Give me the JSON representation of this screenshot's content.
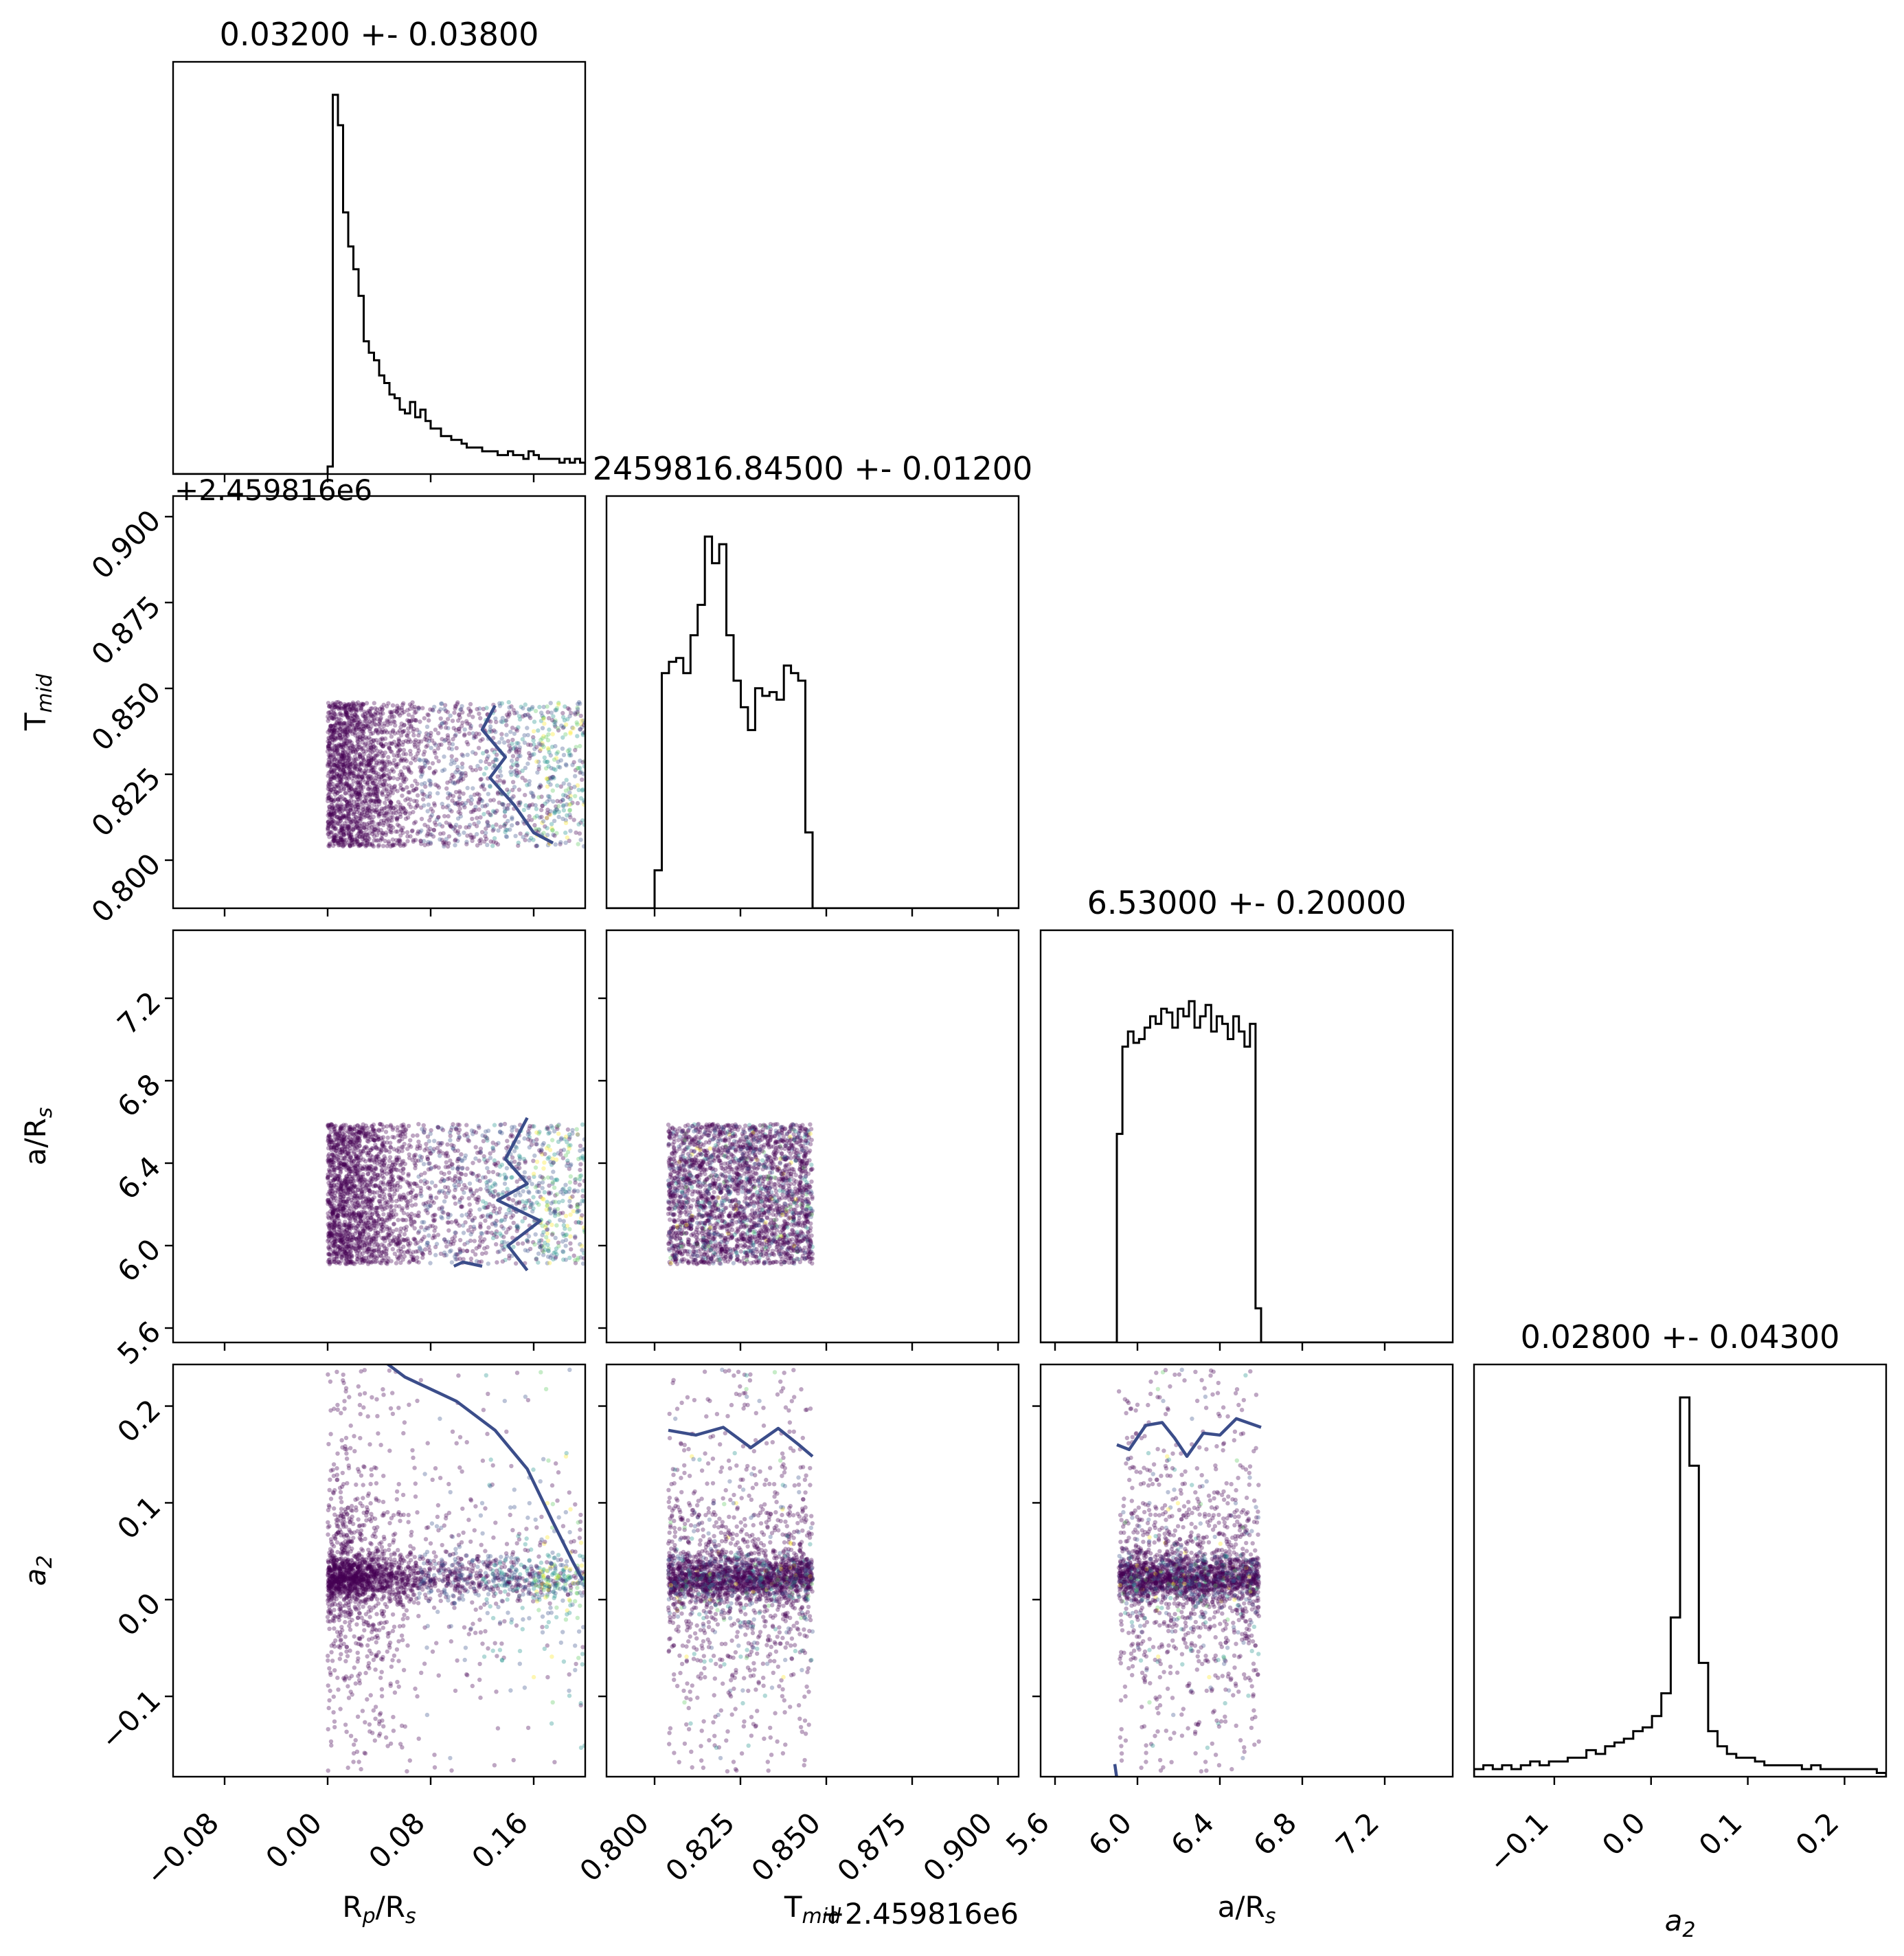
{
  "chart_data": {
    "type": "corner",
    "parameters": [
      {
        "key": "rp",
        "label": "R",
        "label_sub": "p",
        "label_tail": "/R",
        "label_tail_sub": "s",
        "range": [
          -0.12,
          0.2
        ],
        "ticks": [
          "−0.08",
          "0.00",
          "0.08",
          "0.16"
        ],
        "tick_values": [
          -0.08,
          0.0,
          0.08,
          0.16
        ],
        "title": "0.03200 +- 0.03800"
      },
      {
        "key": "tmid",
        "label": "T",
        "label_sub": "mid",
        "range": [
          0.786,
          0.906
        ],
        "ticks": [
          "0.800",
          "0.825",
          "0.850",
          "0.875",
          "0.900"
        ],
        "tick_values": [
          0.8,
          0.825,
          0.85,
          0.875,
          0.9
        ],
        "offset": "+2.459816e6",
        "title": "2459816.84500 +- 0.01200"
      },
      {
        "key": "ars",
        "label": "a/R",
        "label_sub": "s",
        "range": [
          5.53,
          7.53
        ],
        "ticks": [
          "5.6",
          "6.0",
          "6.4",
          "6.8",
          "7.2"
        ],
        "tick_values": [
          5.6,
          6.0,
          6.4,
          6.8,
          7.2
        ],
        "title": "6.53000 +- 0.20000"
      },
      {
        "key": "a2",
        "label": "a",
        "label_sub": "2",
        "italic": true,
        "range": [
          -0.183,
          0.243
        ],
        "ticks": [
          "−0.1",
          "0.0",
          "0.1",
          "0.2"
        ],
        "tick_values": [
          -0.1,
          0.0,
          0.1,
          0.2
        ],
        "title": "0.02800 +- 0.04300"
      }
    ],
    "histograms": {
      "rp": {
        "edges": [
          0.0,
          0.2
        ],
        "counts": [
          0.02,
          1.0,
          0.92,
          0.69,
          0.6,
          0.54,
          0.47,
          0.35,
          0.32,
          0.3,
          0.26,
          0.24,
          0.21,
          0.2,
          0.17,
          0.16,
          0.19,
          0.15,
          0.17,
          0.14,
          0.12,
          0.12,
          0.1,
          0.1,
          0.09,
          0.09,
          0.08,
          0.07,
          0.07,
          0.07,
          0.06,
          0.06,
          0.06,
          0.05,
          0.05,
          0.06,
          0.05,
          0.05,
          0.04,
          0.06,
          0.05,
          0.04,
          0.04,
          0.04,
          0.04,
          0.03,
          0.04,
          0.03,
          0.04,
          0.03
        ]
      },
      "tmid": {
        "range": [
          0.8,
          0.906
        ],
        "edges": [
          0.8,
          0.846
        ],
        "counts": [
          0.1,
          0.62,
          0.65,
          0.66,
          0.62,
          0.72,
          0.8,
          0.98,
          0.91,
          0.96,
          0.72,
          0.6,
          0.53,
          0.47,
          0.58,
          0.56,
          0.57,
          0.55,
          0.64,
          0.62,
          0.6,
          0.2
        ]
      },
      "ars": {
        "range": [
          5.9,
          6.6
        ],
        "edges": [
          5.9,
          6.6
        ],
        "counts": [
          0.55,
          0.78,
          0.82,
          0.79,
          0.8,
          0.83,
          0.86,
          0.84,
          0.88,
          0.87,
          0.83,
          0.88,
          0.86,
          0.9,
          0.83,
          0.86,
          0.89,
          0.82,
          0.86,
          0.84,
          0.8,
          0.86,
          0.82,
          0.78,
          0.84,
          0.09
        ]
      },
      "a2": {
        "edges": [
          -0.183,
          0.243
        ],
        "counts": [
          0.02,
          0.03,
          0.02,
          0.03,
          0.02,
          0.03,
          0.04,
          0.03,
          0.04,
          0.04,
          0.05,
          0.05,
          0.07,
          0.06,
          0.08,
          0.09,
          0.1,
          0.12,
          0.13,
          0.16,
          0.22,
          0.42,
          1.0,
          0.82,
          0.3,
          0.12,
          0.08,
          0.06,
          0.05,
          0.05,
          0.04,
          0.03,
          0.03,
          0.03,
          0.03,
          0.02,
          0.03,
          0.02,
          0.02,
          0.02,
          0.02,
          0.02,
          0.02,
          0.01
        ]
      }
    },
    "scatter": {
      "colormap": [
        "#440154",
        "#3b528b",
        "#21918c",
        "#5ec962",
        "#fde725"
      ],
      "contour_color": "#3b4d8a"
    },
    "contours": {
      "rp_tmid": [
        [
          0.13,
          0.845
        ],
        [
          0.12,
          0.838
        ],
        [
          0.138,
          0.83
        ],
        [
          0.126,
          0.824
        ],
        [
          0.145,
          0.816
        ],
        [
          0.16,
          0.808
        ],
        [
          0.175,
          0.805
        ]
      ],
      "rp_ars": [
        [
          0.155,
          6.62
        ],
        [
          0.138,
          6.42
        ],
        [
          0.155,
          6.3
        ],
        [
          0.132,
          6.22
        ],
        [
          0.165,
          6.12
        ],
        [
          0.14,
          6.0
        ],
        [
          0.155,
          5.88
        ]
      ],
      "rp_ars_b": [
        [
          0.12,
          5.9
        ],
        [
          0.105,
          5.92
        ],
        [
          0.098,
          5.9
        ]
      ],
      "rp_a2": [
        [
          0.04,
          0.25
        ],
        [
          0.06,
          0.23
        ],
        [
          0.1,
          0.205
        ],
        [
          0.13,
          0.175
        ],
        [
          0.155,
          0.135
        ],
        [
          0.175,
          0.08
        ],
        [
          0.19,
          0.04
        ],
        [
          0.198,
          0.02
        ]
      ],
      "tmid_a2": [
        [
          0.804,
          0.175
        ],
        [
          0.812,
          0.17
        ],
        [
          0.82,
          0.178
        ],
        [
          0.828,
          0.157
        ],
        [
          0.836,
          0.177
        ],
        [
          0.842,
          0.16
        ],
        [
          0.846,
          0.148
        ]
      ],
      "ars_a2": [
        [
          5.9,
          0.16
        ],
        [
          5.96,
          0.155
        ],
        [
          6.04,
          0.18
        ],
        [
          6.12,
          0.183
        ],
        [
          6.18,
          0.167
        ],
        [
          6.24,
          0.148
        ],
        [
          6.32,
          0.172
        ],
        [
          6.4,
          0.17
        ],
        [
          6.48,
          0.187
        ],
        [
          6.6,
          0.178
        ]
      ],
      "ars_a2_b": [
        [
          5.89,
          -0.17
        ],
        [
          5.9,
          -0.185
        ]
      ]
    }
  }
}
